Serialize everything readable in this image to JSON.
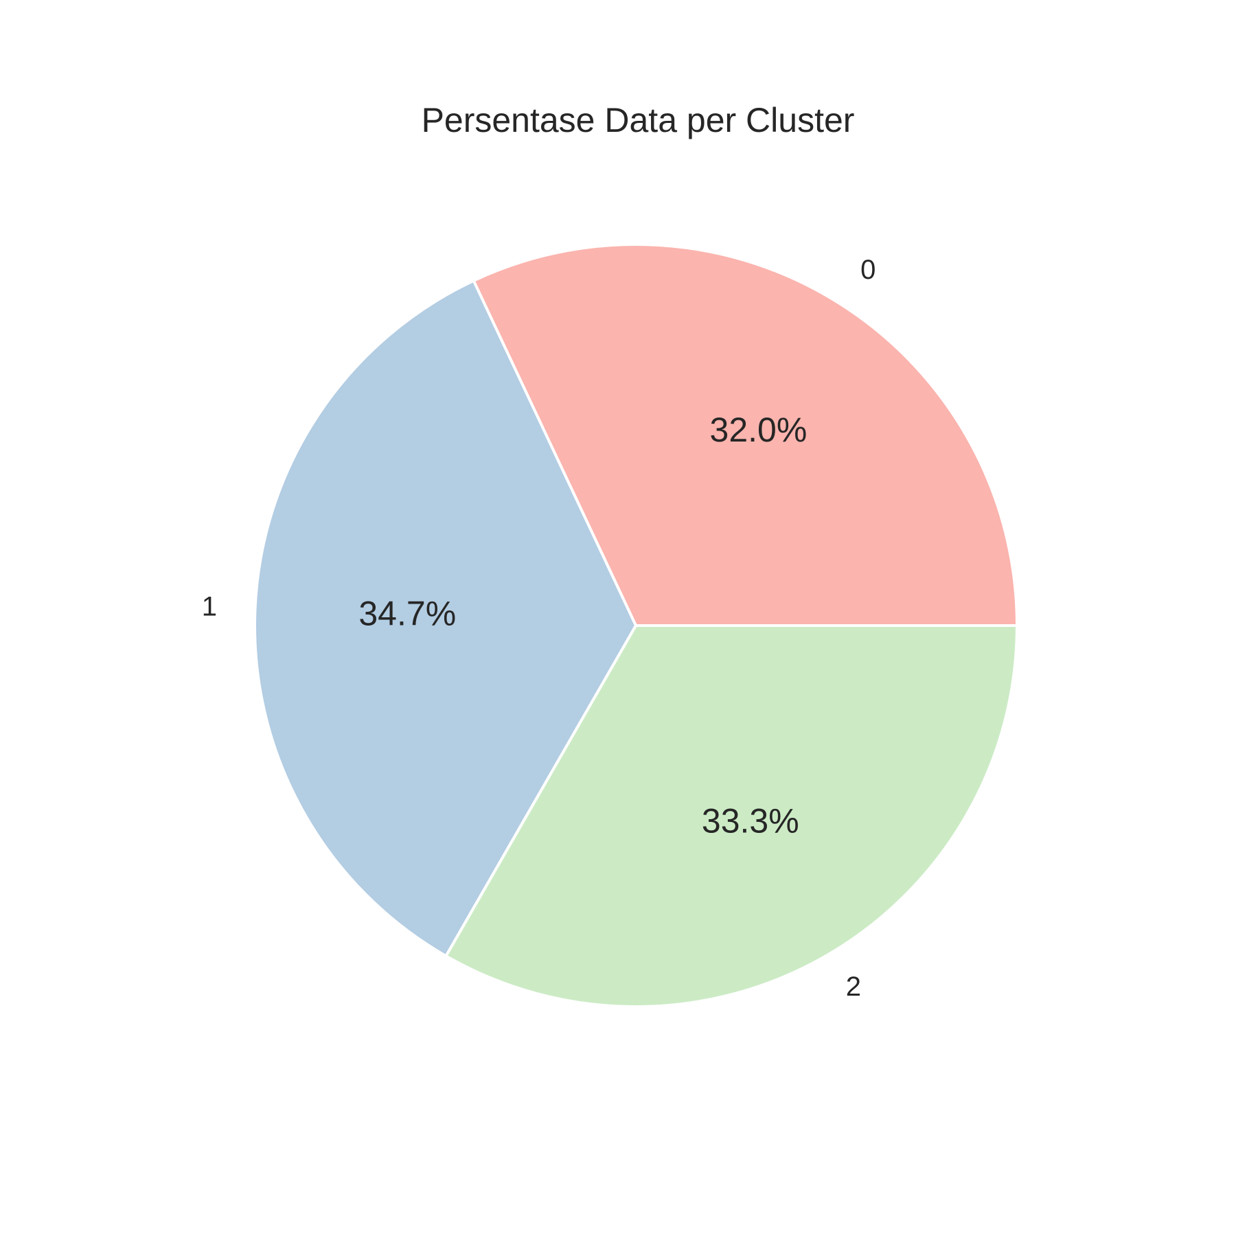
{
  "chart_data": {
    "type": "pie",
    "title": "Persentase Data per Cluster",
    "start_angle_deg": 0,
    "direction": "counterclockwise",
    "slices": [
      {
        "label": "0",
        "value": 32.0,
        "pct_label": "32.0%",
        "color": "#fbb4ae"
      },
      {
        "label": "1",
        "value": 34.7,
        "pct_label": "34.7%",
        "color": "#b3cde3"
      },
      {
        "label": "2",
        "value": 33.3,
        "pct_label": "33.3%",
        "color": "#ccebc5"
      }
    ]
  }
}
